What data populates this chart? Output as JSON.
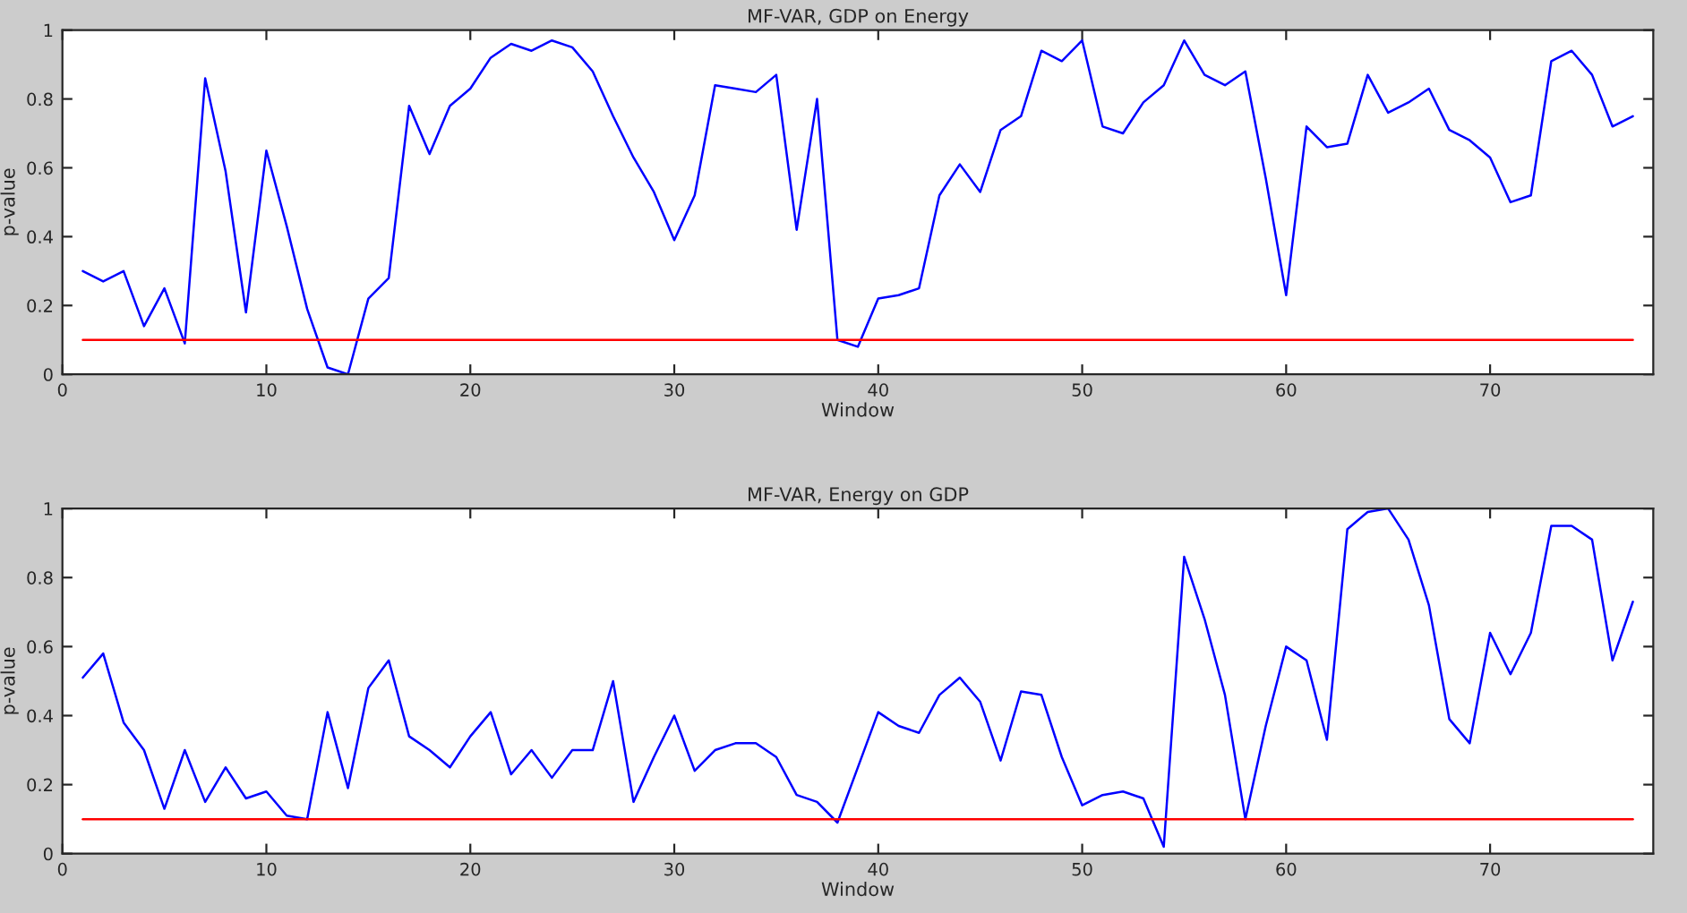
{
  "chart_data": [
    {
      "type": "line",
      "title": "MF-VAR, GDP on Energy",
      "xlabel": "Window",
      "ylabel": "p-value",
      "xlim": [
        0,
        78
      ],
      "xticks": [
        0,
        10,
        20,
        30,
        40,
        50,
        60,
        70
      ],
      "ylim": [
        0,
        1
      ],
      "yticks": [
        0,
        0.2,
        0.4,
        0.6,
        0.8,
        1
      ],
      "grid": false,
      "marker": "none",
      "line_style": "solid",
      "series": [
        {
          "color": "#0000ff",
          "x": [
            1,
            2,
            3,
            4,
            5,
            6,
            7,
            8,
            9,
            10,
            11,
            12,
            13,
            14,
            15,
            16,
            17,
            18,
            19,
            20,
            21,
            22,
            23,
            24,
            25,
            26,
            27,
            28,
            29,
            30,
            31,
            32,
            33,
            34,
            35,
            36,
            37,
            38,
            39,
            40,
            41,
            42,
            43,
            44,
            45,
            46,
            47,
            48,
            49,
            50,
            51,
            52,
            53,
            54,
            55,
            56,
            57,
            58,
            59,
            60,
            61,
            62,
            63,
            64,
            65,
            66,
            67,
            68,
            69,
            70,
            71,
            72,
            73,
            74,
            75,
            76,
            77
          ],
          "values": [
            0.3,
            0.27,
            0.3,
            0.14,
            0.25,
            0.09,
            0.86,
            0.59,
            0.18,
            0.65,
            0.43,
            0.19,
            0.02,
            0.0,
            0.22,
            0.28,
            0.78,
            0.64,
            0.78,
            0.83,
            0.92,
            0.96,
            0.94,
            0.97,
            0.95,
            0.88,
            0.75,
            0.63,
            0.53,
            0.39,
            0.52,
            0.84,
            0.83,
            0.82,
            0.87,
            0.42,
            0.8,
            0.1,
            0.08,
            0.22,
            0.23,
            0.25,
            0.52,
            0.61,
            0.53,
            0.71,
            0.75,
            0.94,
            0.91,
            0.97,
            0.72,
            0.7,
            0.79,
            0.84,
            0.97,
            0.87,
            0.84,
            0.88,
            0.57,
            0.23,
            0.72,
            0.66,
            0.67,
            0.87,
            0.76,
            0.79,
            0.83,
            0.71,
            0.68,
            0.63,
            0.5,
            0.52,
            0.91,
            0.94,
            0.87,
            0.72,
            0.75
          ]
        },
        {
          "color": "#ff0000",
          "x": [
            1,
            77
          ],
          "values": [
            0.1,
            0.1
          ]
        }
      ]
    },
    {
      "type": "line",
      "title": "MF-VAR, Energy on GDP",
      "xlabel": "Window",
      "ylabel": "p-value",
      "xlim": [
        0,
        78
      ],
      "xticks": [
        0,
        10,
        20,
        30,
        40,
        50,
        60,
        70
      ],
      "ylim": [
        0,
        1
      ],
      "yticks": [
        0,
        0.2,
        0.4,
        0.6,
        0.8,
        1
      ],
      "grid": false,
      "marker": "none",
      "line_style": "solid",
      "series": [
        {
          "color": "#0000ff",
          "x": [
            1,
            2,
            3,
            4,
            5,
            6,
            7,
            8,
            9,
            10,
            11,
            12,
            13,
            14,
            15,
            16,
            17,
            18,
            19,
            20,
            21,
            22,
            23,
            24,
            25,
            26,
            27,
            28,
            29,
            30,
            31,
            32,
            33,
            34,
            35,
            36,
            37,
            38,
            39,
            40,
            41,
            42,
            43,
            44,
            45,
            46,
            47,
            48,
            49,
            50,
            51,
            52,
            53,
            54,
            55,
            56,
            57,
            58,
            59,
            60,
            61,
            62,
            63,
            64,
            65,
            66,
            67,
            68,
            69,
            70,
            71,
            72,
            73,
            74,
            75,
            76,
            77
          ],
          "values": [
            0.51,
            0.58,
            0.38,
            0.3,
            0.13,
            0.3,
            0.15,
            0.25,
            0.16,
            0.18,
            0.11,
            0.1,
            0.41,
            0.19,
            0.48,
            0.56,
            0.34,
            0.3,
            0.25,
            0.34,
            0.41,
            0.23,
            0.3,
            0.22,
            0.3,
            0.3,
            0.5,
            0.15,
            0.28,
            0.4,
            0.24,
            0.3,
            0.32,
            0.32,
            0.28,
            0.17,
            0.15,
            0.09,
            0.25,
            0.41,
            0.37,
            0.35,
            0.46,
            0.51,
            0.44,
            0.27,
            0.47,
            0.46,
            0.28,
            0.14,
            0.17,
            0.18,
            0.16,
            0.02,
            0.86,
            0.68,
            0.46,
            0.1,
            0.37,
            0.6,
            0.56,
            0.33,
            0.94,
            0.99,
            1.0,
            0.91,
            0.72,
            0.39,
            0.32,
            0.64,
            0.52,
            0.64,
            0.95,
            0.95,
            0.91,
            0.56,
            0.73
          ]
        },
        {
          "color": "#ff0000",
          "x": [
            1,
            77
          ],
          "values": [
            0.1,
            0.1
          ]
        }
      ]
    }
  ]
}
